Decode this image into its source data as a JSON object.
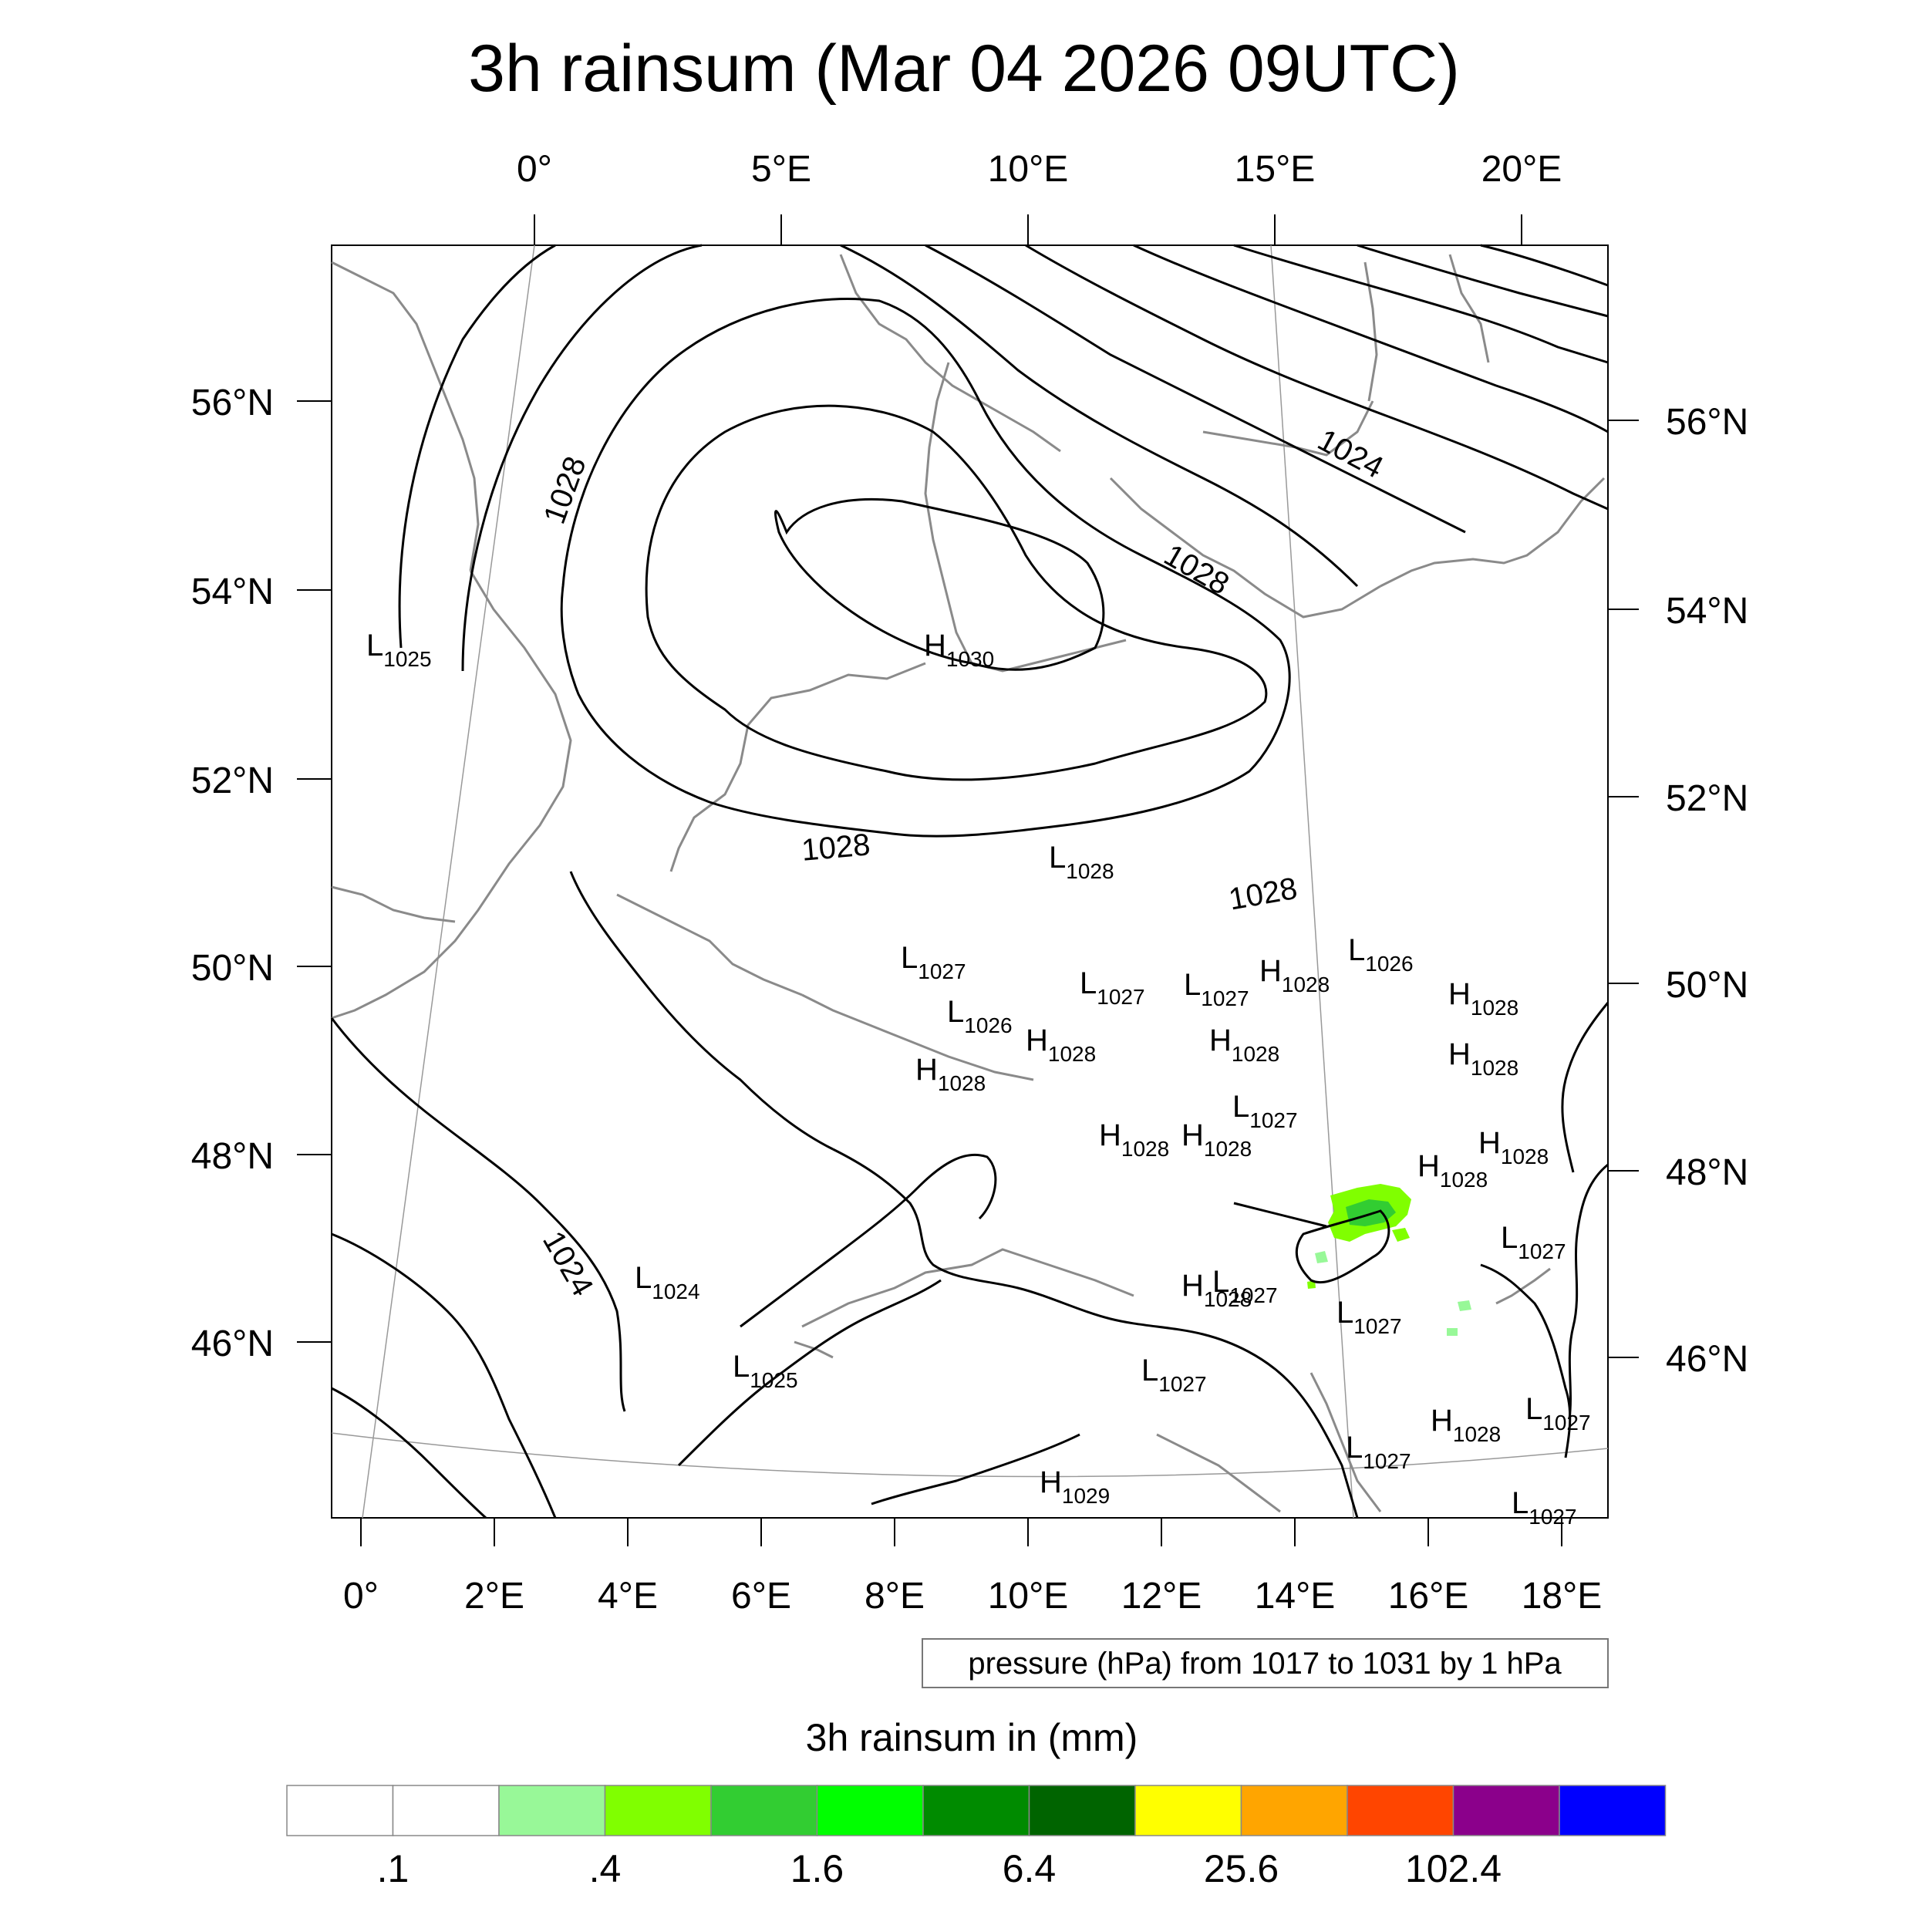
{
  "title": "3h rainsum (Mar 04 2026 09UTC)",
  "map": {
    "top_lon_labels": [
      "0°",
      "5°E",
      "10°E",
      "15°E",
      "20°E"
    ],
    "bottom_lon_labels": [
      "0°",
      "2°E",
      "4°E",
      "6°E",
      "8°E",
      "10°E",
      "12°E",
      "14°E",
      "16°E",
      "18°E"
    ],
    "left_lat_labels": [
      "56°N",
      "54°N",
      "52°N",
      "50°N",
      "48°N",
      "46°N"
    ],
    "right_lat_labels": [
      "56°N",
      "54°N",
      "52°N",
      "50°N",
      "48°N",
      "46°N"
    ],
    "isobar_labels": [
      "1028",
      "1024",
      "1028",
      "1028",
      "1028",
      "1024"
    ],
    "pressure_centers": [
      {
        "type": "L",
        "value": "1025"
      },
      {
        "type": "H",
        "value": "1030"
      },
      {
        "type": "L",
        "value": "1028"
      },
      {
        "type": "L",
        "value": "1027"
      },
      {
        "type": "L",
        "value": "1026"
      },
      {
        "type": "H",
        "value": "1028"
      },
      {
        "type": "L",
        "value": "1027"
      },
      {
        "type": "L",
        "value": "1027"
      },
      {
        "type": "H",
        "value": "1028"
      },
      {
        "type": "L",
        "value": "1026"
      },
      {
        "type": "H",
        "value": "1028"
      },
      {
        "type": "H",
        "value": "1028"
      },
      {
        "type": "H",
        "value": "1028"
      },
      {
        "type": "H",
        "value": "1028"
      },
      {
        "type": "H",
        "value": "1028"
      },
      {
        "type": "L",
        "value": "1027"
      },
      {
        "type": "H",
        "value": "1028"
      },
      {
        "type": "H",
        "value": "1028"
      },
      {
        "type": "H",
        "value": "1028"
      },
      {
        "type": "H",
        "value": "1028"
      },
      {
        "type": "L",
        "value": "1027"
      },
      {
        "type": "L",
        "value": "1024"
      },
      {
        "type": "L",
        "value": "1027"
      },
      {
        "type": "L",
        "value": "1027"
      },
      {
        "type": "L",
        "value": "1025"
      },
      {
        "type": "L",
        "value": "1027"
      },
      {
        "type": "H",
        "value": "1028"
      },
      {
        "type": "L",
        "value": "1027"
      },
      {
        "type": "L",
        "value": "1027"
      },
      {
        "type": "H",
        "value": "1029"
      },
      {
        "type": "L",
        "value": "1027"
      }
    ]
  },
  "pressure_note": "pressure (hPa) from 1017 to 1031 by 1 hPa",
  "legend": {
    "title": "3h rainsum in (mm)",
    "colors": [
      "#ffffff",
      "#ffffff",
      "#98f898",
      "#80ff00",
      "#32cd32",
      "#00ff00",
      "#008b00",
      "#006400",
      "#ffff00",
      "#ffa500",
      "#ff4500",
      "#8b008b",
      "#0000ff"
    ],
    "labels": [
      ".1",
      ".4",
      "1.6",
      "6.4",
      "25.6",
      "102.4"
    ]
  },
  "rain_colors": {
    "light": "#98f898",
    "medium": "#80ff00",
    "heavy": "#32cd32"
  }
}
